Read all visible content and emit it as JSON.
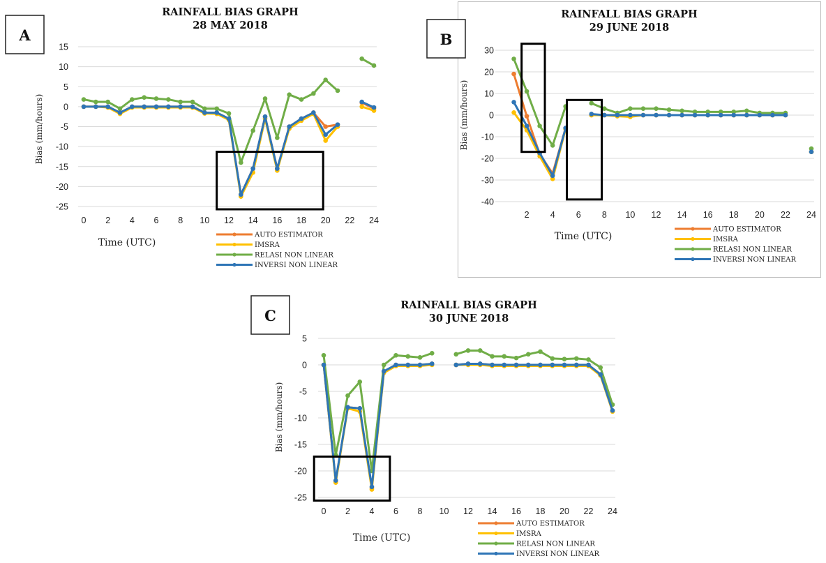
{
  "colors": {
    "auto": "#ED7D31",
    "imsra": "#FFC000",
    "relasi": "#70AD47",
    "inversi": "#2E75B6"
  },
  "chart_data": [
    {
      "type": "line",
      "panel": "A",
      "title": "RAINFALL BIAS GRAPH",
      "subtitle": "28 MAY 2018",
      "xlabel": "Time (UTC)",
      "ylabel": "Bias (mm/hours)",
      "ylim": [
        -25,
        15
      ],
      "yticks": [
        15,
        10,
        5,
        0,
        -5,
        -10,
        -15,
        -20,
        -25
      ],
      "xlim": [
        0,
        24
      ],
      "xticks": [
        0,
        2,
        4,
        6,
        8,
        10,
        12,
        14,
        16,
        18,
        20,
        22,
        24
      ],
      "grid": true,
      "legend_position": "bottom-right",
      "highlight_boxes": [
        {
          "x": [
            11,
            19.8
          ],
          "y": [
            -25.7,
            -11.3
          ]
        }
      ],
      "x": [
        0,
        1,
        2,
        3,
        4,
        5,
        6,
        7,
        8,
        9,
        10,
        11,
        12,
        13,
        14,
        15,
        16,
        17,
        18,
        19,
        20,
        21,
        22,
        23,
        24
      ],
      "series": [
        {
          "name": "AUTO ESTIMATOR",
          "color_key": "auto",
          "values": [
            0,
            0,
            0,
            -1.5,
            0,
            0,
            0,
            0,
            0,
            0,
            -1.5,
            -1.5,
            -3,
            -22,
            -15.5,
            -2.5,
            -15.5,
            -5,
            -3,
            -1.5,
            -5,
            -4.5,
            null,
            1,
            -0.5
          ]
        },
        {
          "name": "IMSRA",
          "color_key": "imsra",
          "values": [
            0,
            0,
            -0.2,
            -1.8,
            -0.2,
            -0.2,
            -0.2,
            -0.2,
            -0.2,
            -0.2,
            -1.7,
            -1.8,
            -3.3,
            -22.5,
            -16.5,
            -3,
            -16,
            -5.5,
            -3.5,
            -1.8,
            -8.5,
            -5,
            null,
            0,
            -1
          ]
        },
        {
          "name": "RELASI NON LINEAR",
          "color_key": "relasi",
          "values": [
            1.8,
            1.2,
            1.2,
            -0.5,
            1.8,
            2.3,
            2,
            1.8,
            1.2,
            1.2,
            -0.5,
            -0.5,
            -1.7,
            -14,
            -6,
            2,
            -7.8,
            3,
            1.8,
            3.3,
            6.7,
            4,
            null,
            12,
            10.3
          ]
        },
        {
          "name": "INVERSI NON LINEAR",
          "color_key": "inversi",
          "values": [
            0,
            0,
            0,
            -1.5,
            0,
            0,
            0,
            0,
            0,
            0,
            -1.5,
            -1.5,
            -3,
            -22,
            -15.5,
            -2.5,
            -15.5,
            -5,
            -3,
            -1.5,
            -7,
            -4.5,
            null,
            1.2,
            -0.2
          ]
        }
      ]
    },
    {
      "type": "line",
      "panel": "B",
      "title": "RAINFALL BIAS GRAPH",
      "subtitle": "29 JUNE 2018",
      "xlabel": "Time (UTC)",
      "ylabel": "Bias (mm/hours)",
      "ylim": [
        -40,
        30
      ],
      "yticks": [
        30,
        20,
        10,
        0,
        -10,
        -20,
        -30,
        -40
      ],
      "xlim": [
        0,
        24
      ],
      "xticks": [
        2,
        4,
        6,
        8,
        10,
        12,
        14,
        16,
        18,
        20,
        22,
        24
      ],
      "grid": true,
      "legend_position": "bottom-right",
      "highlight_boxes": [
        {
          "x": [
            1.6,
            3.4
          ],
          "y": [
            -17,
            33
          ]
        },
        {
          "x": [
            5.1,
            7.8
          ],
          "y": [
            -39,
            7
          ]
        }
      ],
      "x": [
        0,
        1,
        2,
        3,
        4,
        5,
        6,
        7,
        8,
        9,
        10,
        11,
        12,
        13,
        14,
        15,
        16,
        17,
        18,
        19,
        20,
        21,
        22,
        23,
        24
      ],
      "series": [
        {
          "name": "AUTO ESTIMATOR",
          "color_key": "auto",
          "values": [
            null,
            19,
            -0.5,
            -18,
            -27,
            -6,
            null,
            0,
            0,
            0,
            0,
            0,
            0,
            0,
            0,
            0,
            0,
            0,
            0,
            0,
            0,
            0,
            0,
            null,
            -17
          ]
        },
        {
          "name": "IMSRA",
          "color_key": "imsra",
          "values": [
            null,
            1.2,
            -7,
            -19,
            -29.5,
            -6.5,
            null,
            0,
            0,
            -0.5,
            -0.8,
            0,
            0,
            0,
            0,
            0,
            0,
            0,
            0,
            0,
            0,
            0,
            0,
            null,
            -17
          ]
        },
        {
          "name": "RELASI NON LINEAR",
          "color_key": "relasi",
          "values": [
            null,
            26,
            11,
            -5,
            -14,
            4,
            null,
            5.5,
            3,
            1,
            3,
            3,
            3,
            2.5,
            2,
            1.5,
            1.5,
            1.5,
            1.5,
            2,
            1,
            1,
            1,
            null,
            -15.5
          ]
        },
        {
          "name": "INVERSI NON LINEAR",
          "color_key": "inversi",
          "values": [
            null,
            6,
            -5,
            -17.5,
            -28,
            -6,
            null,
            0.5,
            0,
            0,
            0,
            0,
            0,
            0,
            0,
            0,
            0,
            0,
            0,
            0,
            0,
            0,
            0,
            null,
            -17
          ]
        }
      ]
    },
    {
      "type": "line",
      "panel": "C",
      "title": "RAINFALL BIAS GRAPH",
      "subtitle": "30 JUNE 2018",
      "xlabel": "Time (UTC)",
      "ylabel": "Bias (mm/hours)",
      "ylim": [
        -25,
        5
      ],
      "yticks": [
        5,
        0,
        -5,
        -10,
        -15,
        -20,
        -25
      ],
      "xlim": [
        0,
        24
      ],
      "xticks": [
        0,
        2,
        4,
        6,
        8,
        10,
        12,
        14,
        16,
        18,
        20,
        22,
        24
      ],
      "grid": true,
      "legend_position": "bottom-right",
      "highlight_boxes": [
        {
          "x": [
            -0.8,
            5.5
          ],
          "y": [
            -25.6,
            -17.3
          ]
        }
      ],
      "x": [
        0,
        1,
        2,
        3,
        4,
        5,
        6,
        7,
        8,
        9,
        10,
        11,
        12,
        13,
        14,
        15,
        16,
        17,
        18,
        19,
        20,
        21,
        22,
        23,
        24
      ],
      "series": [
        {
          "name": "AUTO ESTIMATOR",
          "color_key": "auto",
          "values": [
            0,
            -22,
            -8,
            -8.2,
            -23.2,
            -1.3,
            0,
            0,
            0,
            0.2,
            null,
            0,
            0.2,
            0.2,
            0,
            0,
            0,
            0,
            0,
            0,
            0,
            0,
            0,
            -1.8,
            -8.7
          ]
        },
        {
          "name": "IMSRA",
          "color_key": "imsra",
          "values": [
            0,
            -22.2,
            -8.2,
            -8.8,
            -23.5,
            -1.5,
            -0.2,
            -0.2,
            -0.2,
            0,
            null,
            0,
            0,
            0,
            -0.2,
            -0.2,
            -0.2,
            -0.2,
            -0.2,
            -0.2,
            -0.2,
            -0.2,
            -0.2,
            -2,
            -8.8
          ]
        },
        {
          "name": "RELASI NON LINEAR",
          "color_key": "relasi",
          "values": [
            1.8,
            -17,
            -5.8,
            -3.2,
            -20,
            0,
            1.8,
            1.6,
            1.4,
            2.2,
            null,
            2,
            2.7,
            2.7,
            1.6,
            1.6,
            1.3,
            2,
            2.5,
            1.2,
            1.1,
            1.2,
            1,
            -0.5,
            -7.5
          ]
        },
        {
          "name": "INVERSI NON LINEAR",
          "color_key": "inversi",
          "values": [
            0,
            -21.8,
            -8,
            -8.2,
            -23,
            -1.2,
            0,
            0,
            0,
            0.2,
            null,
            0,
            0.2,
            0.2,
            0,
            0,
            0,
            0,
            0,
            0,
            0,
            0,
            0,
            -1.8,
            -8.6
          ]
        }
      ]
    }
  ]
}
